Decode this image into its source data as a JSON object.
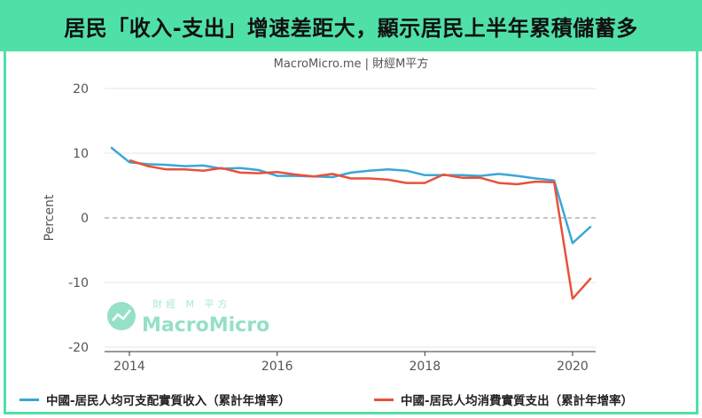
{
  "title": "居民「收入-支出」增速差距大，顯示居民上半年累積儲蓄多",
  "chart_data": {
    "type": "line",
    "source_label": "MacroMicro.me | 財經M平方",
    "ylabel": "Percent",
    "ylim": [
      -22,
      22
    ],
    "xlim": [
      2013.7,
      2020.35
    ],
    "y_ticks": [
      20,
      10,
      0,
      -10,
      -20
    ],
    "y_tick_labels": [
      "20",
      "10",
      "0",
      "-10",
      "-20"
    ],
    "x_ticks": [
      2014,
      2016,
      2018,
      2020
    ],
    "x_tick_labels": [
      "2014",
      "2016",
      "2018",
      "2020"
    ],
    "reference_line": 0,
    "series": [
      {
        "name": "中國-居民人均可支配實質收入（累計年增率）",
        "color": "#3aa6d8",
        "points": [
          [
            2013.75,
            10.9
          ],
          [
            2014.0,
            8.6
          ],
          [
            2014.25,
            8.3
          ],
          [
            2014.5,
            8.2
          ],
          [
            2014.75,
            8.0
          ],
          [
            2015.0,
            8.1
          ],
          [
            2015.25,
            7.6
          ],
          [
            2015.5,
            7.7
          ],
          [
            2015.75,
            7.4
          ],
          [
            2016.0,
            6.5
          ],
          [
            2016.25,
            6.5
          ],
          [
            2016.5,
            6.4
          ],
          [
            2016.75,
            6.3
          ],
          [
            2017.0,
            7.0
          ],
          [
            2017.25,
            7.3
          ],
          [
            2017.5,
            7.5
          ],
          [
            2017.75,
            7.3
          ],
          [
            2018.0,
            6.6
          ],
          [
            2018.25,
            6.6
          ],
          [
            2018.5,
            6.6
          ],
          [
            2018.75,
            6.5
          ],
          [
            2019.0,
            6.8
          ],
          [
            2019.25,
            6.5
          ],
          [
            2019.5,
            6.1
          ],
          [
            2019.75,
            5.8
          ],
          [
            2020.0,
            -3.9
          ],
          [
            2020.25,
            -1.3
          ]
        ]
      },
      {
        "name": "中國-居民人均消費實質支出（累計年增率）",
        "color": "#e8513a",
        "points": [
          [
            2014.0,
            8.9
          ],
          [
            2014.25,
            8.0
          ],
          [
            2014.5,
            7.5
          ],
          [
            2014.75,
            7.5
          ],
          [
            2015.0,
            7.3
          ],
          [
            2015.25,
            7.7
          ],
          [
            2015.5,
            7.0
          ],
          [
            2015.75,
            6.9
          ],
          [
            2016.0,
            7.1
          ],
          [
            2016.25,
            6.7
          ],
          [
            2016.5,
            6.4
          ],
          [
            2016.75,
            6.8
          ],
          [
            2017.0,
            6.1
          ],
          [
            2017.25,
            6.1
          ],
          [
            2017.5,
            5.9
          ],
          [
            2017.75,
            5.4
          ],
          [
            2018.0,
            5.4
          ],
          [
            2018.25,
            6.7
          ],
          [
            2018.5,
            6.2
          ],
          [
            2018.75,
            6.2
          ],
          [
            2019.0,
            5.4
          ],
          [
            2019.25,
            5.2
          ],
          [
            2019.5,
            5.6
          ],
          [
            2019.75,
            5.5
          ],
          [
            2020.0,
            -12.5
          ],
          [
            2020.25,
            -9.3
          ]
        ]
      }
    ]
  },
  "watermark": {
    "top_text": "財經 M 平方",
    "brand_text": "MacroMicro"
  }
}
